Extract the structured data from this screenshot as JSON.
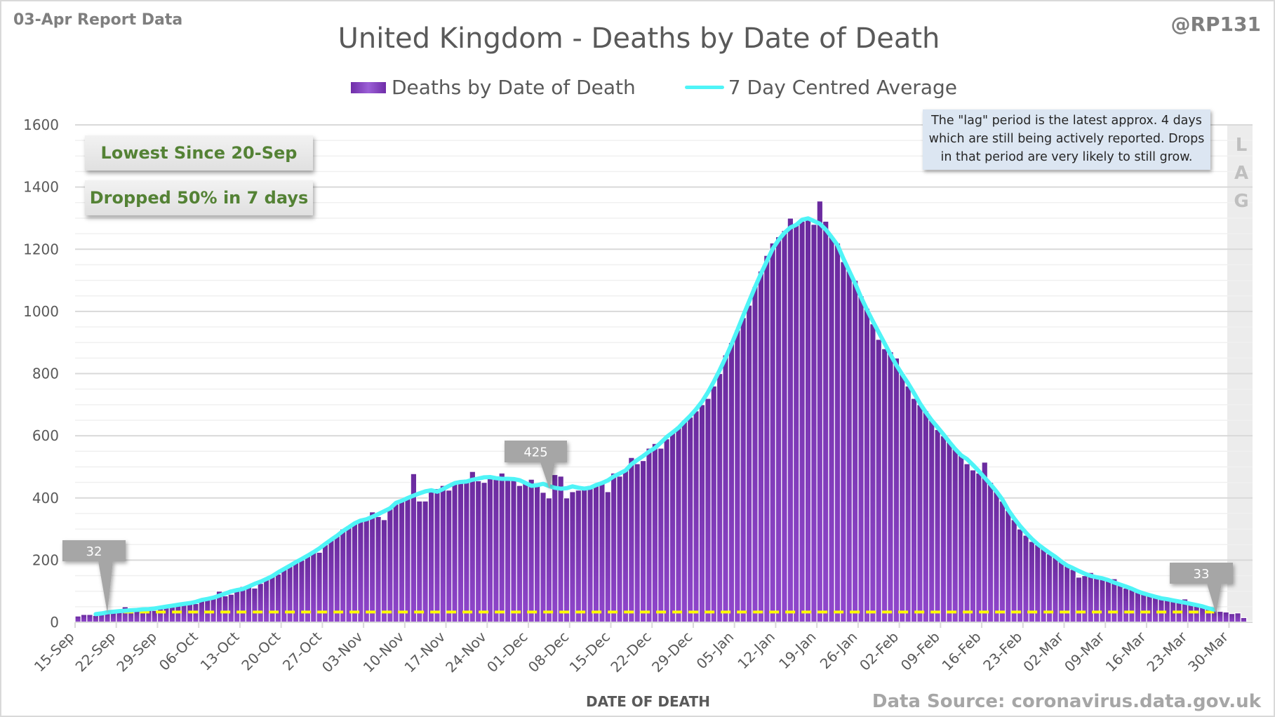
{
  "header": {
    "report_label": "03-Apr Report Data",
    "handle": "@RP131"
  },
  "annotations": {
    "lowest": "Lowest Since 20-Sep",
    "dropped": "Dropped 50% in 7 days",
    "lag_note": [
      "The \"lag\" period is the latest approx. 4 days",
      "which are still being actively reported.  Drops",
      "in that period are very likely to still grow."
    ],
    "lag_letters": [
      "L",
      "A",
      "G"
    ],
    "callouts": [
      {
        "label": "32",
        "date": "20-Sep"
      },
      {
        "label": "425",
        "date": "06-Dec"
      },
      {
        "label": "33",
        "date": "27-Mar"
      }
    ],
    "reference_line": {
      "value": 33,
      "color": "#ffff00",
      "style": "dashed"
    }
  },
  "footer": {
    "source": "Data Source: coronavirus.data.gov.uk"
  },
  "chart_data": {
    "type": "bar",
    "title": "United Kingdom - Deaths by Date of Death",
    "xlabel": "DATE OF DEATH",
    "ylabel": "",
    "ylim": [
      0,
      1600
    ],
    "yticks": [
      0,
      200,
      400,
      600,
      800,
      1000,
      1200,
      1400,
      1600
    ],
    "grid": true,
    "legend": "top-center",
    "start_date": "15-Sep",
    "end_date": "02-Apr",
    "xtick_labels": [
      "15-Sep",
      "22-Sep",
      "29-Sep",
      "06-Oct",
      "13-Oct",
      "20-Oct",
      "27-Oct",
      "03-Nov",
      "10-Nov",
      "17-Nov",
      "24-Nov",
      "01-Dec",
      "08-Dec",
      "15-Dec",
      "22-Dec",
      "29-Dec",
      "05-Jan",
      "12-Jan",
      "19-Jan",
      "26-Jan",
      "02-Feb",
      "09-Feb",
      "16-Feb",
      "23-Feb",
      "02-Mar",
      "09-Mar",
      "16-Mar",
      "23-Mar",
      "30-Mar"
    ],
    "series": [
      {
        "name": "Deaths by Date of Death",
        "kind": "bar",
        "color": "#7b35b8",
        "values": [
          20,
          25,
          25,
          22,
          30,
          32,
          30,
          35,
          50,
          38,
          36,
          40,
          42,
          38,
          48,
          55,
          52,
          58,
          60,
          62,
          60,
          68,
          72,
          80,
          100,
          85,
          90,
          105,
          115,
          120,
          110,
          125,
          140,
          150,
          155,
          175,
          185,
          195,
          200,
          215,
          230,
          225,
          250,
          265,
          280,
          300,
          310,
          320,
          330,
          335,
          355,
          340,
          330,
          365,
          380,
          395,
          400,
          478,
          390,
          390,
          420,
          430,
          440,
          425,
          445,
          450,
          460,
          485,
          455,
          450,
          465,
          470,
          480,
          465,
          460,
          440,
          450,
          460,
          445,
          418,
          400,
          475,
          470,
          400,
          420,
          425,
          430,
          440,
          445,
          450,
          420,
          480,
          470,
          490,
          530,
          510,
          520,
          560,
          575,
          560,
          590,
          610,
          630,
          650,
          660,
          680,
          700,
          720,
          760,
          800,
          860,
          900,
          940,
          980,
          1020,
          1080,
          1130,
          1180,
          1220,
          1240,
          1260,
          1300,
          1280,
          1290,
          1300,
          1280,
          1355,
          1290,
          1240,
          1220,
          1160,
          1130,
          1100,
          1050,
          1010,
          960,
          910,
          880,
          870,
          850,
          800,
          760,
          720,
          700,
          680,
          650,
          620,
          600,
          580,
          560,
          540,
          510,
          490,
          480,
          515,
          450,
          420,
          390,
          360,
          330,
          300,
          280,
          260,
          250,
          240,
          220,
          210,
          200,
          185,
          170,
          145,
          150,
          160,
          145,
          140,
          135,
          140,
          120,
          110,
          105,
          100,
          95,
          85,
          80,
          75,
          72,
          68,
          65,
          75,
          58,
          55,
          50,
          45,
          40,
          35,
          33,
          28,
          30,
          15,
          3
        ]
      },
      {
        "name": "7 Day Centred Average",
        "kind": "line",
        "color": "#4ff4f7"
      }
    ]
  }
}
